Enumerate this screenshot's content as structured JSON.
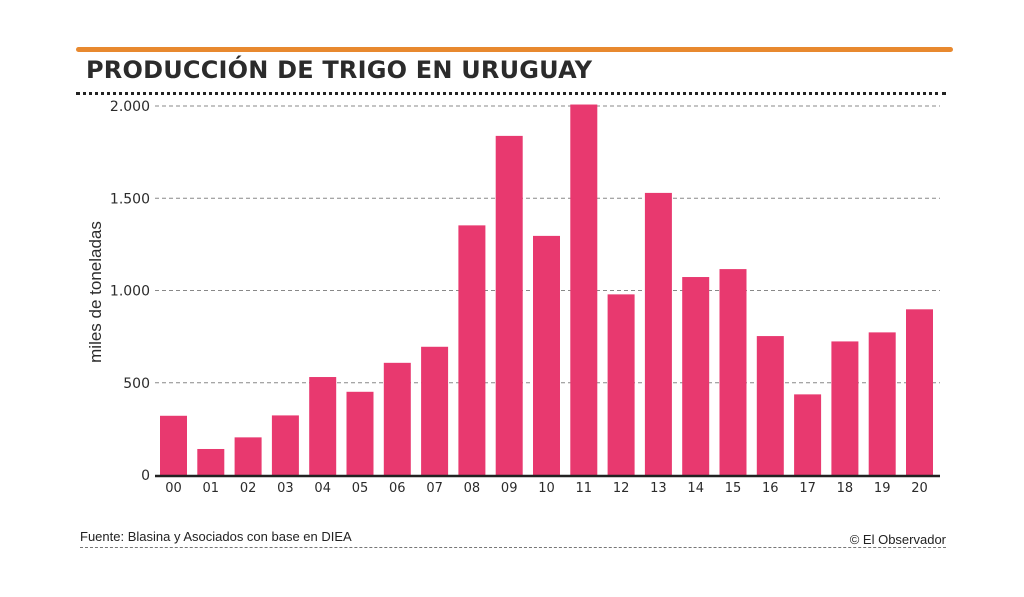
{
  "header": {
    "title": "PRODUCCIÓN DE TRIGO EN URUGUAY"
  },
  "footer": {
    "source": "Fuente: Blasina y Asociados con base en DIEA",
    "credit": "© El Observador"
  },
  "colors": {
    "bar": "#E8396F",
    "accent_rule": "#E8892F",
    "text": "#2b2b2b",
    "grid": "#888888"
  },
  "chart_data": {
    "type": "bar",
    "title": "PRODUCCIÓN DE TRIGO EN URUGUAY",
    "xlabel": "",
    "ylabel": "miles de toneladas",
    "categories": [
      "00",
      "01",
      "02",
      "03",
      "04",
      "05",
      "06",
      "07",
      "08",
      "09",
      "10",
      "11",
      "12",
      "13",
      "14",
      "15",
      "16",
      "17",
      "18",
      "19",
      "20"
    ],
    "values": [
      321,
      141,
      204,
      323,
      531,
      451,
      608,
      695,
      1353,
      1838,
      1296,
      2008,
      979,
      1529,
      1073,
      1116,
      753,
      437,
      724,
      773,
      898
    ],
    "ylim": [
      0,
      2000
    ],
    "yticks": [
      0,
      500,
      1000,
      1500,
      2000
    ],
    "ytick_labels": [
      "0",
      "500",
      "1.000",
      "1.500",
      "2.000"
    ],
    "grid": true,
    "legend": "none"
  }
}
